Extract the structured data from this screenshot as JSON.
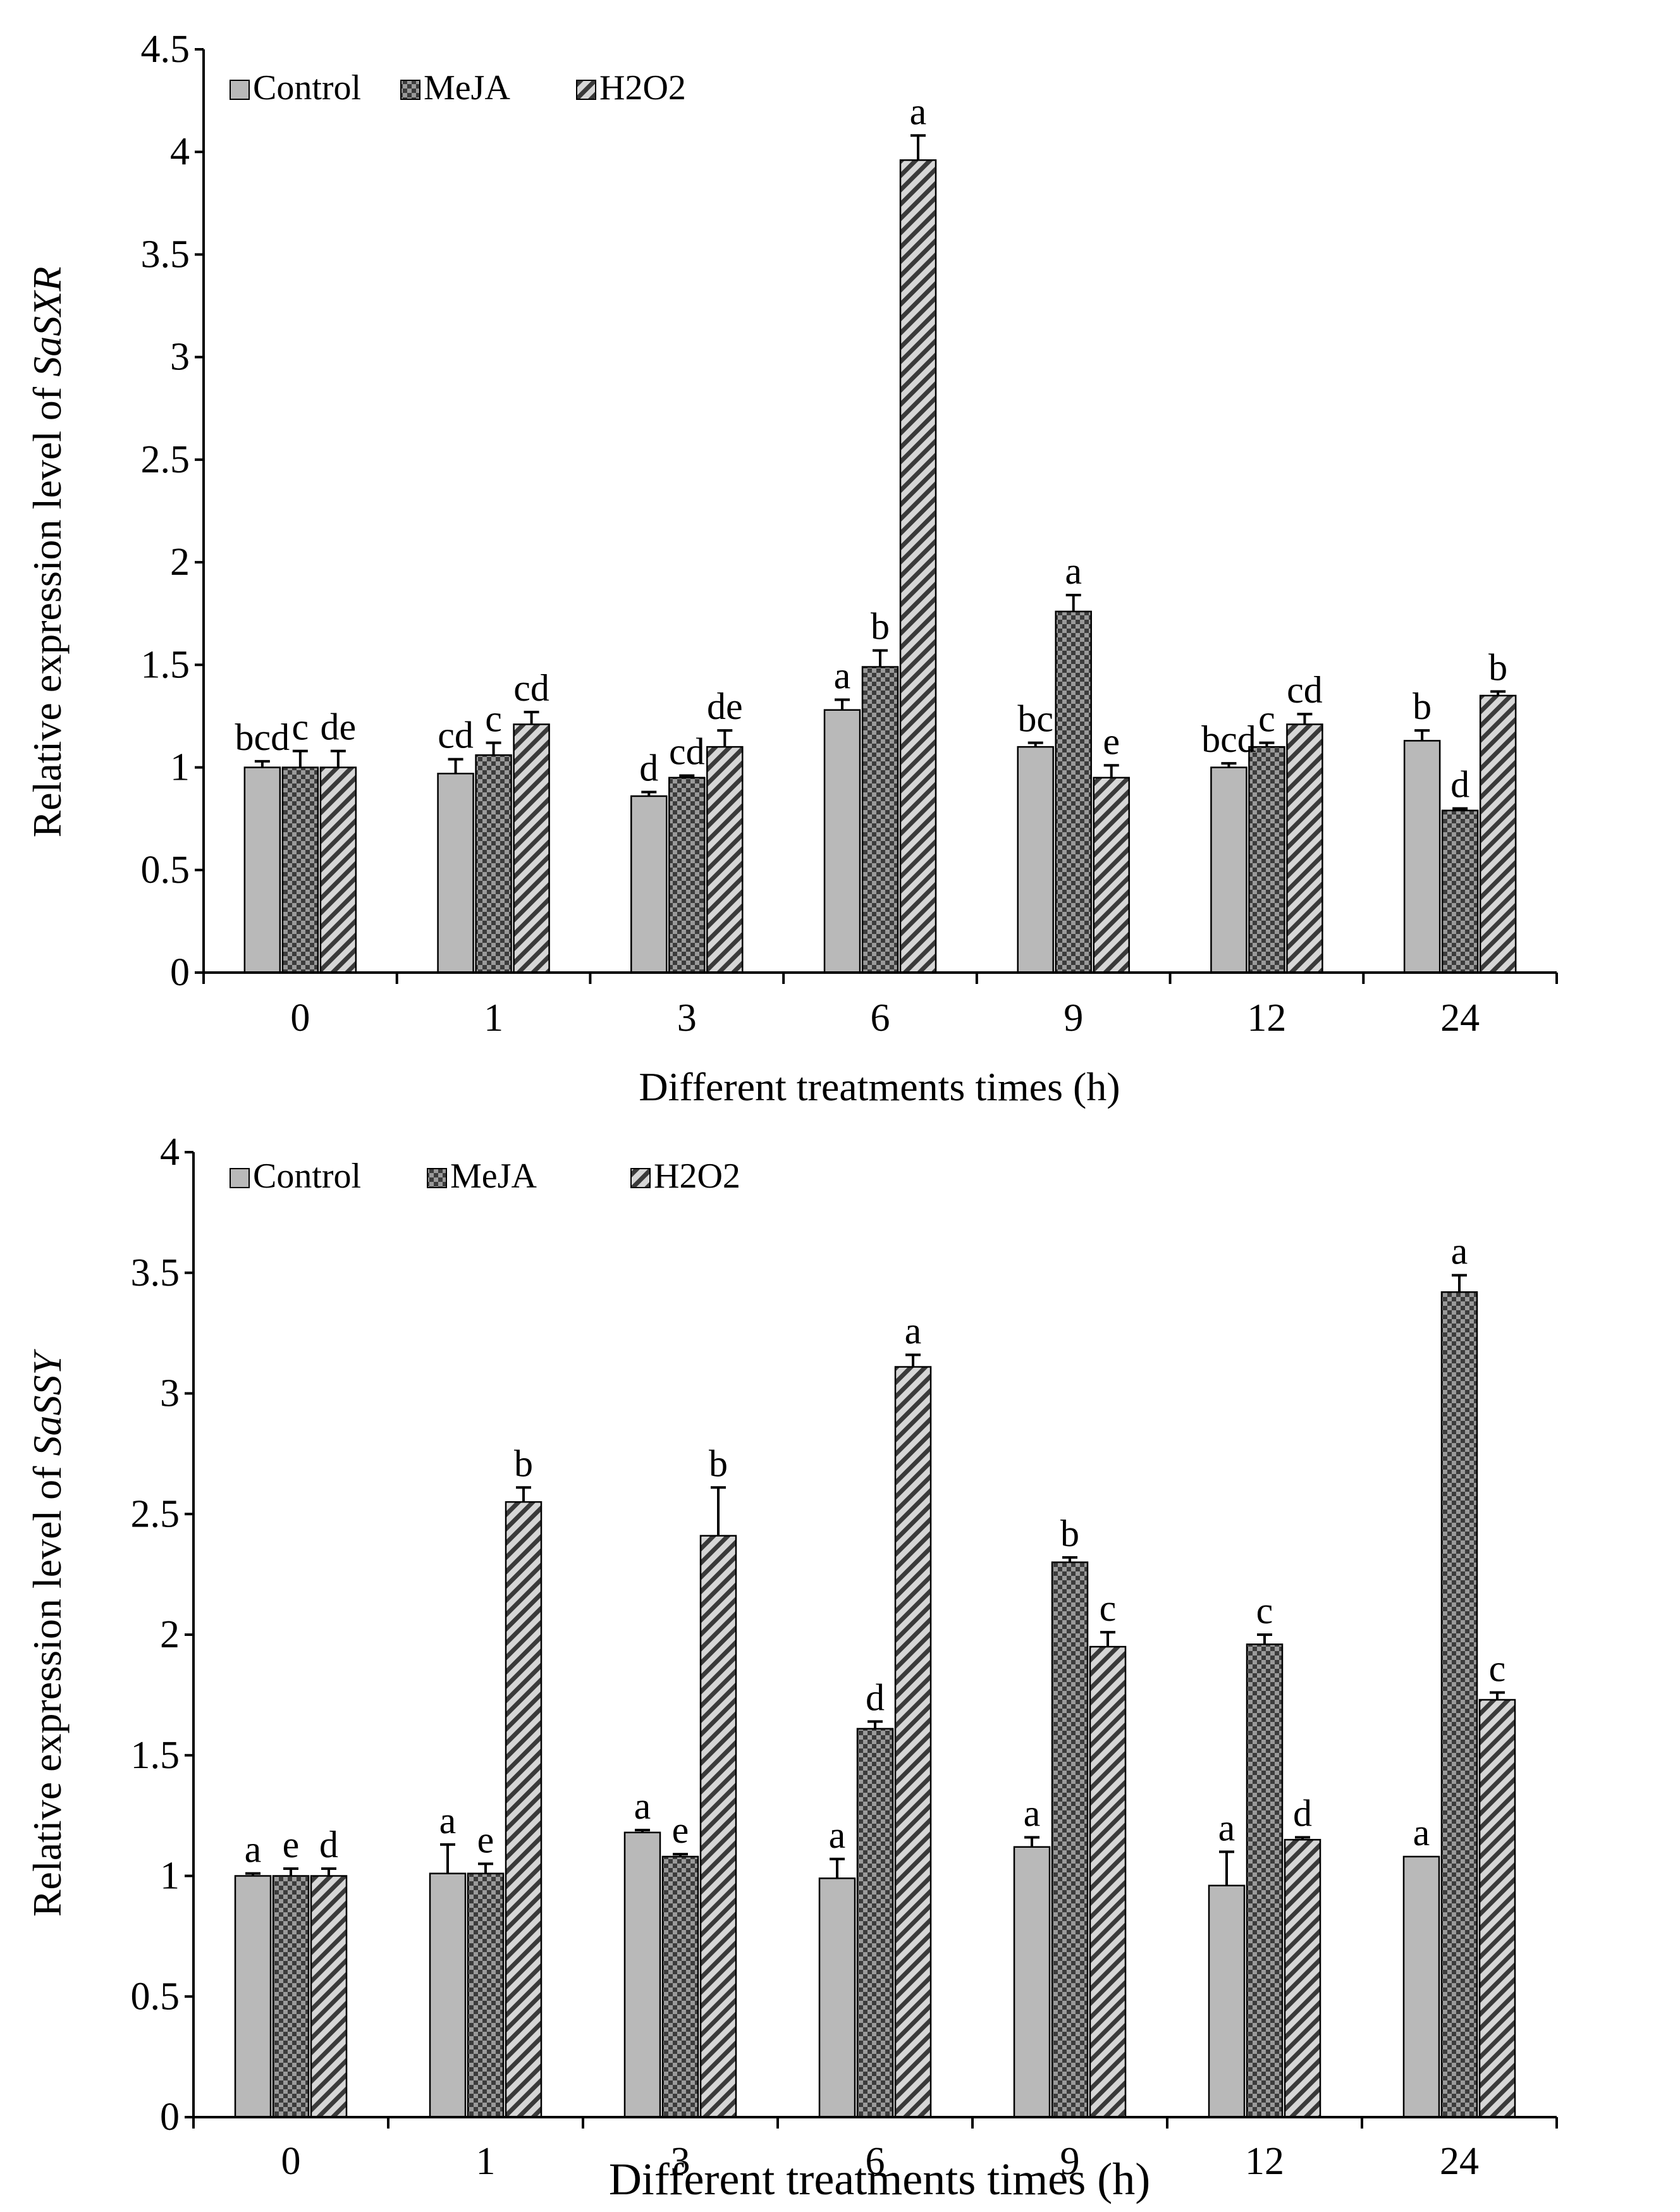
{
  "chart_data": [
    {
      "type": "bar",
      "title": "",
      "xlabel": "Different treatments times (h)",
      "ylabel": "Relative expression level of ",
      "ylabel_gene": "SaSXR",
      "categories": [
        "0",
        "1",
        "3",
        "6",
        "9",
        "12",
        "24"
      ],
      "ylim": [
        0,
        4.5
      ],
      "yticks": [
        "0",
        "0.5",
        "1",
        "1.5",
        "2",
        "2.5",
        "3",
        "3.5",
        "4",
        "4.5"
      ],
      "legend": {
        "placement": "top-left",
        "entries": [
          "Control",
          "MeJA",
          "H2O2"
        ]
      },
      "series": [
        {
          "name": "Control",
          "values": [
            1.0,
            0.97,
            0.86,
            1.28,
            1.1,
            1.0,
            1.13
          ],
          "errors": [
            0.03,
            0.07,
            0.02,
            0.05,
            0.02,
            0.02,
            0.05
          ],
          "letters": [
            "bcd",
            "cd",
            "d",
            "a",
            "bc",
            "bcd",
            "b"
          ]
        },
        {
          "name": "MeJA",
          "values": [
            1.0,
            1.06,
            0.95,
            1.49,
            1.76,
            1.1,
            0.79
          ],
          "errors": [
            0.08,
            0.06,
            0.01,
            0.08,
            0.08,
            0.02,
            0.01
          ],
          "letters": [
            "c",
            "c",
            "cd",
            "b",
            "a",
            "c",
            "d"
          ]
        },
        {
          "name": "H2O2",
          "values": [
            1.0,
            1.21,
            1.1,
            3.96,
            0.95,
            1.21,
            1.35
          ],
          "errors": [
            0.08,
            0.06,
            0.08,
            0.12,
            0.06,
            0.05,
            0.02
          ],
          "letters": [
            "de",
            "cd",
            "de",
            "a",
            "e",
            "cd",
            "b"
          ]
        }
      ]
    },
    {
      "type": "bar",
      "title": "",
      "xlabel": "Different treatments times (h)",
      "ylabel": "Relative expression level of ",
      "ylabel_gene": "SaSSY",
      "categories": [
        "0",
        "1",
        "3",
        "6",
        "9",
        "12",
        "24"
      ],
      "ylim": [
        0,
        4
      ],
      "yticks": [
        "0",
        "0.5",
        "1",
        "1.5",
        "2",
        "2.5",
        "3",
        "3.5",
        "4"
      ],
      "legend": {
        "placement": "top-left",
        "entries": [
          "Control",
          "MeJA",
          "H2O2"
        ]
      },
      "series": [
        {
          "name": "Control",
          "values": [
            1.0,
            1.01,
            1.18,
            0.99,
            1.12,
            0.96,
            1.08
          ],
          "errors": [
            0.01,
            0.12,
            0.01,
            0.08,
            0.04,
            0.14,
            0.0
          ],
          "letters": [
            "a",
            "a",
            "a",
            "a",
            "a",
            "a",
            "a"
          ]
        },
        {
          "name": "MeJA",
          "values": [
            1.0,
            1.01,
            1.08,
            1.61,
            2.3,
            1.96,
            3.42
          ],
          "errors": [
            0.03,
            0.04,
            0.01,
            0.03,
            0.02,
            0.04,
            0.07
          ],
          "letters": [
            "e",
            "e",
            "e",
            "d",
            "b",
            "c",
            "a"
          ]
        },
        {
          "name": "H2O2",
          "values": [
            1.0,
            2.55,
            2.41,
            3.11,
            1.95,
            1.15,
            1.73
          ],
          "errors": [
            0.03,
            0.06,
            0.2,
            0.05,
            0.06,
            0.01,
            0.03
          ],
          "letters": [
            "d",
            "b",
            "b",
            "a",
            "c",
            "d",
            "c"
          ]
        }
      ]
    }
  ]
}
